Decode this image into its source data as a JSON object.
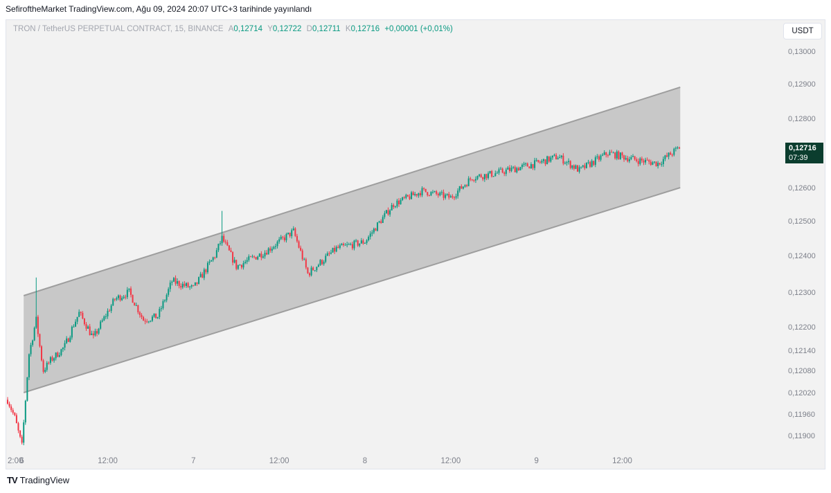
{
  "caption": "SefiroftheMarket TradingView.com, Ağu 09, 2024 20:07 UTC+3 tarihinde yayınlandı",
  "legend": {
    "symbol": "TRON / TetherUS PERPETUAL CONTRACT, 15, BINANCE",
    "open_label": "A",
    "open": "0,12714",
    "high_label": "Y",
    "high": "0,12722",
    "low_label": "D",
    "low": "0,12711",
    "close_label": "K",
    "close": "0,12716",
    "change": "+0,00001 (+0,01%)"
  },
  "currency_button": "USDT",
  "price_tag": {
    "price": "0,12716",
    "countdown": "07:39"
  },
  "footer": {
    "logo": "TV",
    "brand": "TradingView"
  },
  "colors": {
    "up": "#089981",
    "down": "#f23645",
    "channel_fill": "#c8c8c8",
    "channel_line": "#9e9e9e",
    "background": "#f2f2f2",
    "tag": "#0b3d2e"
  },
  "chart_data": {
    "type": "candlestick",
    "timeframe": "15",
    "y_axis": {
      "ticks": [
        "0,13000",
        "0,12900",
        "0,12800",
        "0,12600",
        "0,12500",
        "0,12400",
        "0,12300",
        "0,12200",
        "0,12140",
        "0,12080",
        "0,12020",
        "0,11960",
        "0,11900"
      ],
      "tick_values": [
        0.13,
        0.129,
        0.128,
        0.126,
        0.125,
        0.124,
        0.123,
        0.122,
        0.1214,
        0.1208,
        0.1202,
        0.1196,
        0.119
      ]
    },
    "x_axis": {
      "ticks": [
        "2:00",
        "6",
        "12:00",
        "7",
        "12:00",
        "8",
        "12:00",
        "9",
        "12:00"
      ],
      "tick_times": [
        "2024-08-05 22:00",
        "2024-08-06 00:00",
        "2024-08-06 12:00",
        "2024-08-07 00:00",
        "2024-08-07 12:00",
        "2024-08-08 00:00",
        "2024-08-08 12:00",
        "2024-08-09 00:00",
        "2024-08-09 12:00"
      ]
    },
    "time_range": [
      "2024-08-05 22:00",
      "2024-08-09 20:00"
    ],
    "channel": {
      "upper": [
        {
          "time": "2024-08-06 00:15",
          "price": 0.1229
        },
        {
          "time": "2024-08-09 20:07",
          "price": 0.1289
        }
      ],
      "lower": [
        {
          "time": "2024-08-06 00:15",
          "price": 0.1202
        },
        {
          "time": "2024-08-09 20:07",
          "price": 0.126
        }
      ]
    },
    "price_path": [
      {
        "time": "2024-08-05 22:00",
        "price": 0.12
      },
      {
        "time": "2024-08-05 23:00",
        "price": 0.1195
      },
      {
        "time": "2024-08-06 00:00",
        "price": 0.1187
      },
      {
        "time": "2024-08-06 01:00",
        "price": 0.1213
      },
      {
        "time": "2024-08-06 02:00",
        "price": 0.1222
      },
      {
        "time": "2024-08-06 03:00",
        "price": 0.1208
      },
      {
        "time": "2024-08-06 04:00",
        "price": 0.1211
      },
      {
        "time": "2024-08-06 06:00",
        "price": 0.1215
      },
      {
        "time": "2024-08-06 08:00",
        "price": 0.1224
      },
      {
        "time": "2024-08-06 10:00",
        "price": 0.1217
      },
      {
        "time": "2024-08-06 13:00",
        "price": 0.1228
      },
      {
        "time": "2024-08-06 15:00",
        "price": 0.123
      },
      {
        "time": "2024-08-06 17:00",
        "price": 0.1222
      },
      {
        "time": "2024-08-06 19:00",
        "price": 0.1223
      },
      {
        "time": "2024-08-06 21:00",
        "price": 0.1233
      },
      {
        "time": "2024-08-07 00:00",
        "price": 0.1231
      },
      {
        "time": "2024-08-07 03:00",
        "price": 0.124
      },
      {
        "time": "2024-08-07 04:00",
        "price": 0.1245
      },
      {
        "time": "2024-08-07 06:00",
        "price": 0.1237
      },
      {
        "time": "2024-08-07 10:00",
        "price": 0.1241
      },
      {
        "time": "2024-08-07 14:00",
        "price": 0.1247
      },
      {
        "time": "2024-08-07 16:00",
        "price": 0.1235
      },
      {
        "time": "2024-08-07 20:00",
        "price": 0.1242
      },
      {
        "time": "2024-08-08 00:00",
        "price": 0.1244
      },
      {
        "time": "2024-08-08 04:00",
        "price": 0.1255
      },
      {
        "time": "2024-08-08 08:00",
        "price": 0.1259
      },
      {
        "time": "2024-08-08 12:00",
        "price": 0.1257
      },
      {
        "time": "2024-08-08 15:00",
        "price": 0.1263
      },
      {
        "time": "2024-08-08 18:00",
        "price": 0.1264
      },
      {
        "time": "2024-08-09 00:00",
        "price": 0.1267
      },
      {
        "time": "2024-08-09 03:00",
        "price": 0.1269
      },
      {
        "time": "2024-08-09 06:00",
        "price": 0.1265
      },
      {
        "time": "2024-08-09 10:00",
        "price": 0.127
      },
      {
        "time": "2024-08-09 14:00",
        "price": 0.1268
      },
      {
        "time": "2024-08-09 17:00",
        "price": 0.1267
      },
      {
        "time": "2024-08-09 20:00",
        "price": 0.12716
      }
    ],
    "wick_highs": [
      {
        "time": "2024-08-06 02:00",
        "price": 0.1234
      },
      {
        "time": "2024-08-07 04:00",
        "price": 0.1253
      }
    ]
  }
}
